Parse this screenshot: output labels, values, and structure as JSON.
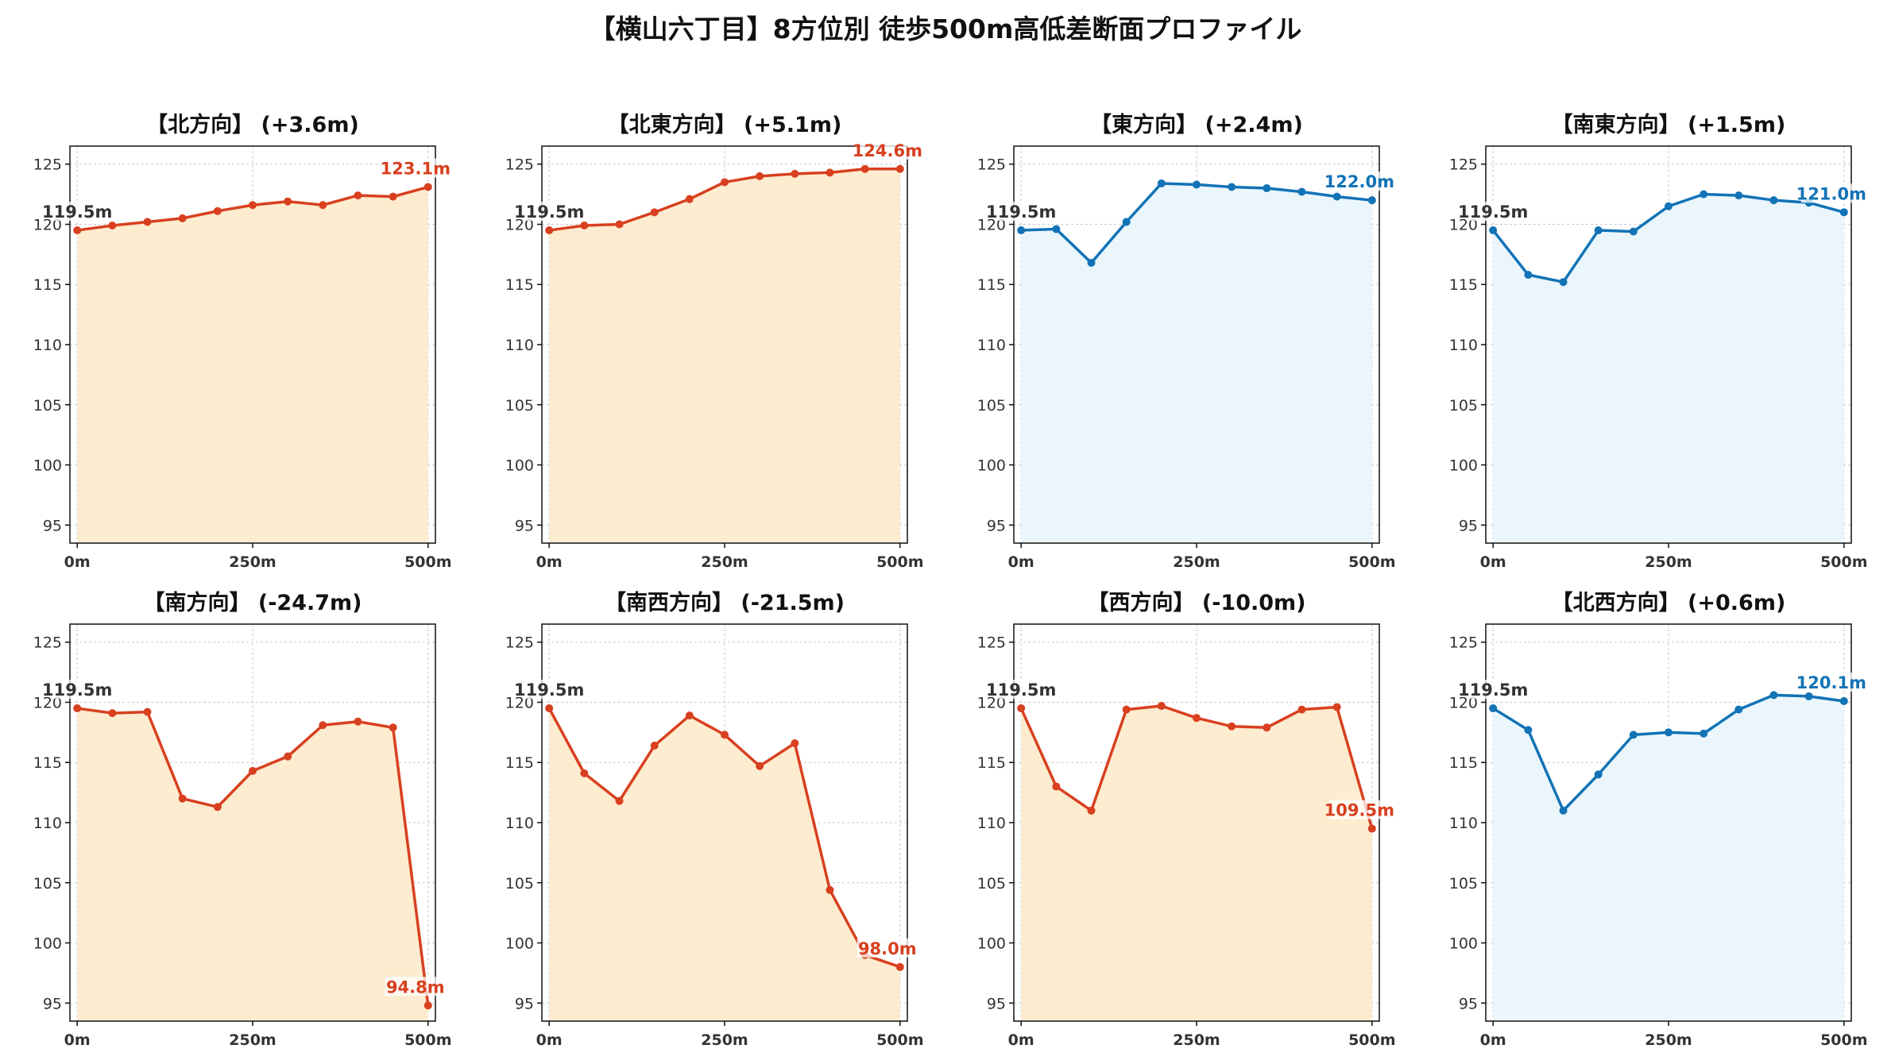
{
  "title": "【横山六丁目】8方位別 徒歩500m高低差断面プロファイル",
  "colors": {
    "up": "#d8401f",
    "up_fill": "#fdeccf",
    "down": "#1273b6",
    "down_fill": "#eaf6fc"
  },
  "chart_data": [
    {
      "type": "line",
      "title": "【北方向】 (+3.6m)",
      "x": [
        0,
        50,
        100,
        150,
        200,
        250,
        300,
        350,
        400,
        450,
        500
      ],
      "values": [
        119.5,
        119.9,
        120.2,
        120.5,
        121.1,
        121.6,
        121.9,
        121.6,
        122.4,
        122.3,
        123.1
      ],
      "start_label": "119.5m",
      "end_label": "123.1m",
      "color": "up",
      "xticks": [
        "0m",
        "250m",
        "500m"
      ],
      "yticks": [
        95,
        100,
        105,
        110,
        115,
        120,
        125
      ],
      "ylim": [
        93.5,
        126.5
      ],
      "grid": true
    },
    {
      "type": "line",
      "title": "【北東方向】 (+5.1m)",
      "x": [
        0,
        50,
        100,
        150,
        200,
        250,
        300,
        350,
        400,
        450,
        500
      ],
      "values": [
        119.5,
        119.9,
        120.0,
        121.0,
        122.1,
        123.5,
        124.0,
        124.2,
        124.3,
        124.6,
        124.6
      ],
      "start_label": "119.5m",
      "end_label": "124.6m",
      "color": "up",
      "xticks": [
        "0m",
        "250m",
        "500m"
      ],
      "yticks": [
        95,
        100,
        105,
        110,
        115,
        120,
        125
      ],
      "ylim": [
        93.5,
        126.5
      ],
      "grid": true
    },
    {
      "type": "line",
      "title": "【東方向】 (+2.4m)",
      "x": [
        0,
        50,
        100,
        150,
        200,
        250,
        300,
        350,
        400,
        450,
        500
      ],
      "values": [
        119.5,
        119.6,
        116.8,
        120.2,
        123.4,
        123.3,
        123.1,
        123.0,
        122.7,
        122.3,
        122.0
      ],
      "start_label": "119.5m",
      "end_label": "122.0m",
      "color": "down",
      "xticks": [
        "0m",
        "250m",
        "500m"
      ],
      "yticks": [
        95,
        100,
        105,
        110,
        115,
        120,
        125
      ],
      "ylim": [
        93.5,
        126.5
      ],
      "grid": true
    },
    {
      "type": "line",
      "title": "【南東方向】 (+1.5m)",
      "x": [
        0,
        50,
        100,
        150,
        200,
        250,
        300,
        350,
        400,
        450,
        500
      ],
      "values": [
        119.5,
        115.8,
        115.2,
        119.5,
        119.4,
        121.5,
        122.5,
        122.4,
        122.0,
        121.8,
        121.0
      ],
      "start_label": "119.5m",
      "end_label": "121.0m",
      "color": "down",
      "xticks": [
        "0m",
        "250m",
        "500m"
      ],
      "yticks": [
        95,
        100,
        105,
        110,
        115,
        120,
        125
      ],
      "ylim": [
        93.5,
        126.5
      ],
      "grid": true
    },
    {
      "type": "line",
      "title": "【南方向】 (-24.7m)",
      "x": [
        0,
        50,
        100,
        150,
        200,
        250,
        300,
        350,
        400,
        450,
        500
      ],
      "values": [
        119.5,
        119.1,
        119.2,
        112.0,
        111.3,
        114.3,
        115.5,
        118.1,
        118.4,
        117.9,
        94.8
      ],
      "start_label": "119.5m",
      "end_label": "94.8m",
      "color": "up",
      "xticks": [
        "0m",
        "250m",
        "500m"
      ],
      "yticks": [
        95,
        100,
        105,
        110,
        115,
        120,
        125
      ],
      "ylim": [
        93.5,
        126.5
      ],
      "grid": true
    },
    {
      "type": "line",
      "title": "【南西方向】 (-21.5m)",
      "x": [
        0,
        50,
        100,
        150,
        200,
        250,
        300,
        350,
        400,
        450,
        500
      ],
      "values": [
        119.5,
        114.1,
        111.8,
        116.4,
        118.9,
        117.3,
        114.7,
        116.6,
        104.4,
        99.0,
        98.0
      ],
      "start_label": "119.5m",
      "end_label": "98.0m",
      "color": "up",
      "xticks": [
        "0m",
        "250m",
        "500m"
      ],
      "yticks": [
        95,
        100,
        105,
        110,
        115,
        120,
        125
      ],
      "ylim": [
        93.5,
        126.5
      ],
      "grid": true
    },
    {
      "type": "line",
      "title": "【西方向】 (-10.0m)",
      "x": [
        0,
        50,
        100,
        150,
        200,
        250,
        300,
        350,
        400,
        450,
        500
      ],
      "values": [
        119.5,
        113.0,
        111.0,
        119.4,
        119.7,
        118.7,
        118.0,
        117.9,
        119.4,
        119.6,
        109.5
      ],
      "start_label": "119.5m",
      "end_label": "109.5m",
      "color": "up",
      "xticks": [
        "0m",
        "250m",
        "500m"
      ],
      "yticks": [
        95,
        100,
        105,
        110,
        115,
        120,
        125
      ],
      "ylim": [
        93.5,
        126.5
      ],
      "grid": true
    },
    {
      "type": "line",
      "title": "【北西方向】 (+0.6m)",
      "x": [
        0,
        50,
        100,
        150,
        200,
        250,
        300,
        350,
        400,
        450,
        500
      ],
      "values": [
        119.5,
        117.7,
        111.0,
        114.0,
        117.3,
        117.5,
        117.4,
        119.4,
        120.6,
        120.5,
        120.1
      ],
      "start_label": "119.5m",
      "end_label": "120.1m",
      "color": "down",
      "xticks": [
        "0m",
        "250m",
        "500m"
      ],
      "yticks": [
        95,
        100,
        105,
        110,
        115,
        120,
        125
      ],
      "ylim": [
        93.5,
        126.5
      ],
      "grid": true
    }
  ]
}
